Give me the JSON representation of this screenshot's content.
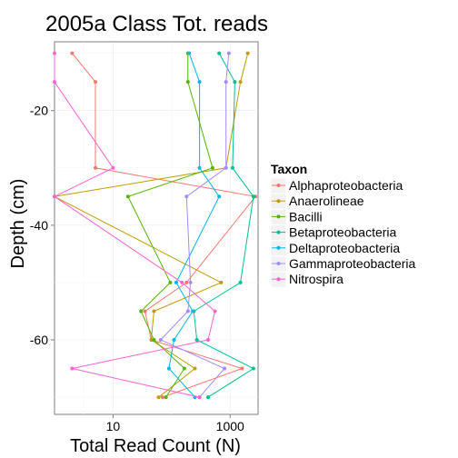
{
  "chart_data": {
    "type": "line",
    "title": "2005a Class Tot. reads",
    "xlabel": "Total Read Count (N)",
    "ylabel": "Depth (cm)",
    "x_scale": "log10",
    "xlim": [
      1,
      3000
    ],
    "ylim": [
      -73,
      -8
    ],
    "x_ticks": [
      10,
      1000
    ],
    "x_tick_labels": [
      "10",
      "1000"
    ],
    "y_ticks": [
      -20,
      -40,
      -60
    ],
    "y_tick_labels": [
      "-20",
      "-40",
      "-60"
    ],
    "grid": true,
    "legend": {
      "title": "Taxon",
      "position": "right"
    },
    "series": [
      {
        "name": "Alphaproteobacteria",
        "color": "#F8766D",
        "points": [
          [
            2,
            -10
          ],
          [
            5,
            -15
          ],
          [
            5,
            -30
          ],
          [
            2700,
            -35
          ],
          [
            180,
            -50
          ],
          [
            35,
            -55
          ],
          [
            45,
            -60
          ],
          [
            1600,
            -65
          ],
          [
            70,
            -70
          ]
        ]
      },
      {
        "name": "Anaerolineae",
        "color": "#C49A00",
        "points": [
          [
            2000,
            -10
          ],
          [
            1500,
            -15
          ],
          [
            850,
            -30
          ],
          [
            1,
            -35
          ],
          [
            700,
            -50
          ],
          [
            50,
            -55
          ],
          [
            45,
            -60
          ],
          [
            250,
            -65
          ],
          [
            60,
            -70
          ]
        ]
      },
      {
        "name": "Bacilli",
        "color": "#53B400",
        "points": [
          [
            190,
            -10
          ],
          [
            190,
            -15
          ],
          [
            500,
            -30
          ],
          [
            18,
            -35
          ],
          [
            95,
            -50
          ],
          [
            30,
            -55
          ],
          [
            50,
            -60
          ],
          [
            165,
            -65
          ],
          [
            80,
            -70
          ]
        ]
      },
      {
        "name": "Betaproteobacteria",
        "color": "#00C094",
        "points": [
          [
            650,
            -10
          ],
          [
            1200,
            -15
          ],
          [
            1100,
            -30
          ],
          [
            2500,
            -35
          ],
          [
            1500,
            -50
          ],
          [
            240,
            -55
          ],
          [
            270,
            -60
          ],
          [
            2500,
            -65
          ],
          [
            420,
            -70
          ]
        ]
      },
      {
        "name": "Deltaproteobacteria",
        "color": "#00B6EB",
        "points": [
          [
            200,
            -10
          ],
          [
            300,
            -15
          ],
          [
            300,
            -30
          ],
          [
            650,
            -35
          ],
          [
            120,
            -50
          ],
          [
            230,
            -55
          ],
          [
            110,
            -60
          ],
          [
            90,
            -65
          ],
          [
            250,
            -70
          ]
        ]
      },
      {
        "name": "Gammaproteobacteria",
        "color": "#A58AFF",
        "points": [
          [
            950,
            -10
          ],
          [
            850,
            -15
          ],
          [
            850,
            -30
          ],
          [
            180,
            -35
          ],
          [
            210,
            -50
          ],
          [
            190,
            -55
          ],
          [
            65,
            -60
          ],
          [
            800,
            -65
          ],
          [
            300,
            -70
          ]
        ]
      },
      {
        "name": "Nitrospira",
        "color": "#FB61D7",
        "points": [
          [
            1,
            -10
          ],
          [
            1,
            -15
          ],
          [
            10,
            -30
          ],
          [
            1,
            -35
          ],
          [
            150,
            -50
          ],
          [
            550,
            -55
          ],
          [
            420,
            -60
          ],
          [
            2,
            -65
          ],
          [
            300,
            -70
          ]
        ]
      }
    ]
  }
}
